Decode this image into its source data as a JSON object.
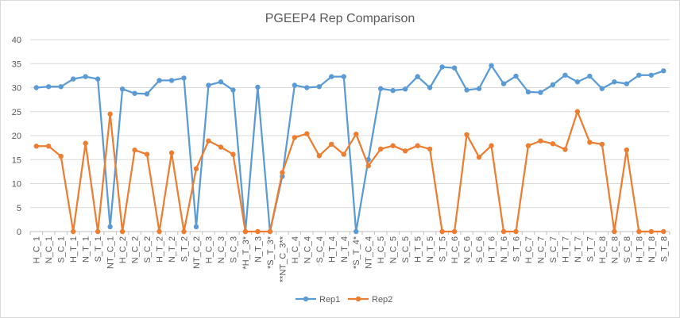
{
  "chart_data": {
    "type": "line",
    "title": "PGEEP4 Rep Comparison",
    "xlabel": "",
    "ylabel": "",
    "ylim": [
      0,
      40
    ],
    "yticks": [
      0,
      5,
      10,
      15,
      20,
      25,
      30,
      35,
      40
    ],
    "grid": true,
    "legend_position": "bottom",
    "categories": [
      "H_C_1",
      "N_C_1",
      "S_C_1",
      "H_T_1",
      "N_T_1",
      "S_T_1",
      "NT_C_1",
      "H_C_2",
      "N_C_2",
      "S_C_2",
      "H_T_2",
      "N_T_2",
      "S_T_2",
      "NT_C_2",
      "H_C_3",
      "N_C_3",
      "S_C_3",
      "*H_T_3*",
      "N_T_3",
      "*S_T_3*",
      "**NT_C_3**",
      "H_C_4",
      "N_C_4",
      "S_C_4",
      "H_T_4",
      "N_T_4",
      "*S_T_4*",
      "NT_C_4",
      "H_C_5",
      "N_C_5",
      "S_C_5",
      "H_T_5",
      "N_T_5",
      "S_T_5",
      "H_C_6",
      "N_C_6",
      "S_C_6",
      "H_T_6",
      "N_T_6",
      "S_T_6",
      "H_C_7",
      "N_C_7",
      "S_C_7",
      "H_T_7",
      "N_T_7",
      "S_T_7",
      "H_C_8",
      "N_C_8",
      "S_C_8",
      "H_T_8",
      "N_T_8",
      "S_T_8"
    ],
    "series": [
      {
        "name": "Rep1",
        "color": "#5b9bd5",
        "values": [
          30.0,
          30.2,
          30.2,
          31.8,
          32.3,
          31.8,
          1.0,
          29.7,
          28.8,
          28.7,
          31.5,
          31.5,
          32.0,
          1.0,
          30.5,
          31.2,
          29.5,
          0.0,
          30.1,
          0.0,
          11.5,
          30.5,
          30.0,
          30.2,
          32.3,
          32.3,
          0.0,
          15.0,
          29.8,
          29.4,
          29.7,
          32.3,
          30.0,
          34.3,
          34.1,
          29.5,
          29.8,
          34.6,
          30.8,
          32.4,
          29.1,
          29.0,
          30.6,
          32.6,
          31.2,
          32.4,
          29.8,
          31.2,
          30.8,
          32.6,
          32.6,
          33.5
        ]
      },
      {
        "name": "Rep2",
        "color": "#ed7d31",
        "values": [
          17.8,
          17.8,
          15.7,
          0.0,
          18.4,
          0.0,
          24.5,
          0.0,
          17.0,
          16.1,
          0.0,
          16.4,
          0.0,
          13.1,
          18.9,
          17.6,
          16.1,
          0.0,
          0.0,
          0.0,
          12.3,
          19.6,
          20.4,
          15.8,
          18.2,
          16.1,
          20.3,
          13.7,
          17.2,
          17.9,
          16.8,
          17.9,
          17.2,
          0.0,
          0.0,
          20.2,
          15.5,
          17.9,
          0.0,
          0.0,
          17.9,
          18.9,
          18.3,
          17.1,
          25.0,
          18.6,
          18.2,
          0.0,
          17.0,
          0.0,
          0.0,
          0.0
        ]
      }
    ]
  }
}
